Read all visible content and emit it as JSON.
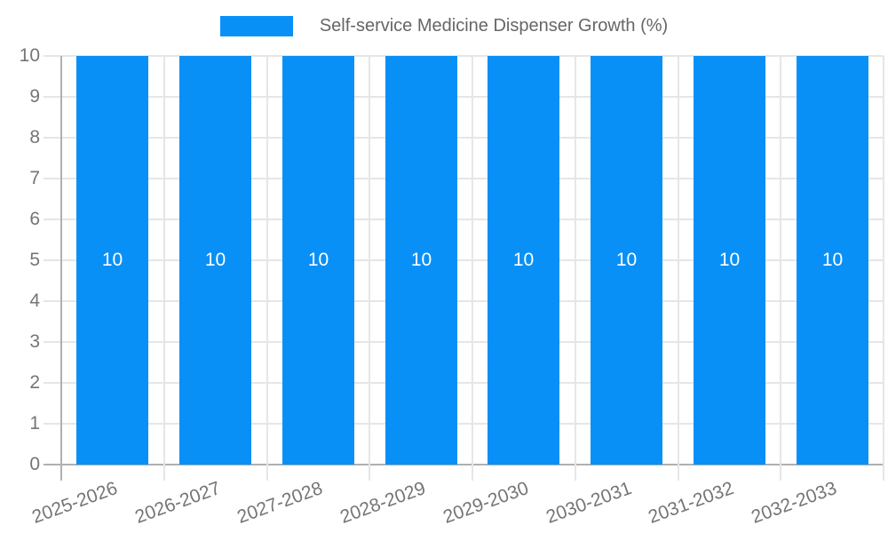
{
  "legend": {
    "label": "Self-service Medicine Dispenser Growth (%)"
  },
  "chart_data": {
    "type": "bar",
    "title": "Self-service Medicine Dispenser Growth (%)",
    "legend_position": "top",
    "categories": [
      "2025-2026",
      "2026-2027",
      "2027-2028",
      "2028-2029",
      "2029-2030",
      "2030-2031",
      "2031-2032",
      "2032-2033"
    ],
    "values": [
      10,
      10,
      10,
      10,
      10,
      10,
      10,
      10
    ],
    "value_labels": [
      "10",
      "10",
      "10",
      "10",
      "10",
      "10",
      "10",
      "10"
    ],
    "xlabel": "",
    "ylabel": "",
    "ylim": [
      0,
      10
    ],
    "yticks": [
      0,
      1,
      2,
      3,
      4,
      5,
      6,
      7,
      8,
      9,
      10
    ],
    "grid": true,
    "x_label_rotation_deg": -20,
    "colors": {
      "bar": "#0990F7",
      "gridline": "#e6e6e6",
      "axis_line": "#b0b0b0",
      "axis_label": "#757575",
      "legend_text": "#666666",
      "value_label": "#ffffff",
      "background": "#ffffff"
    }
  }
}
